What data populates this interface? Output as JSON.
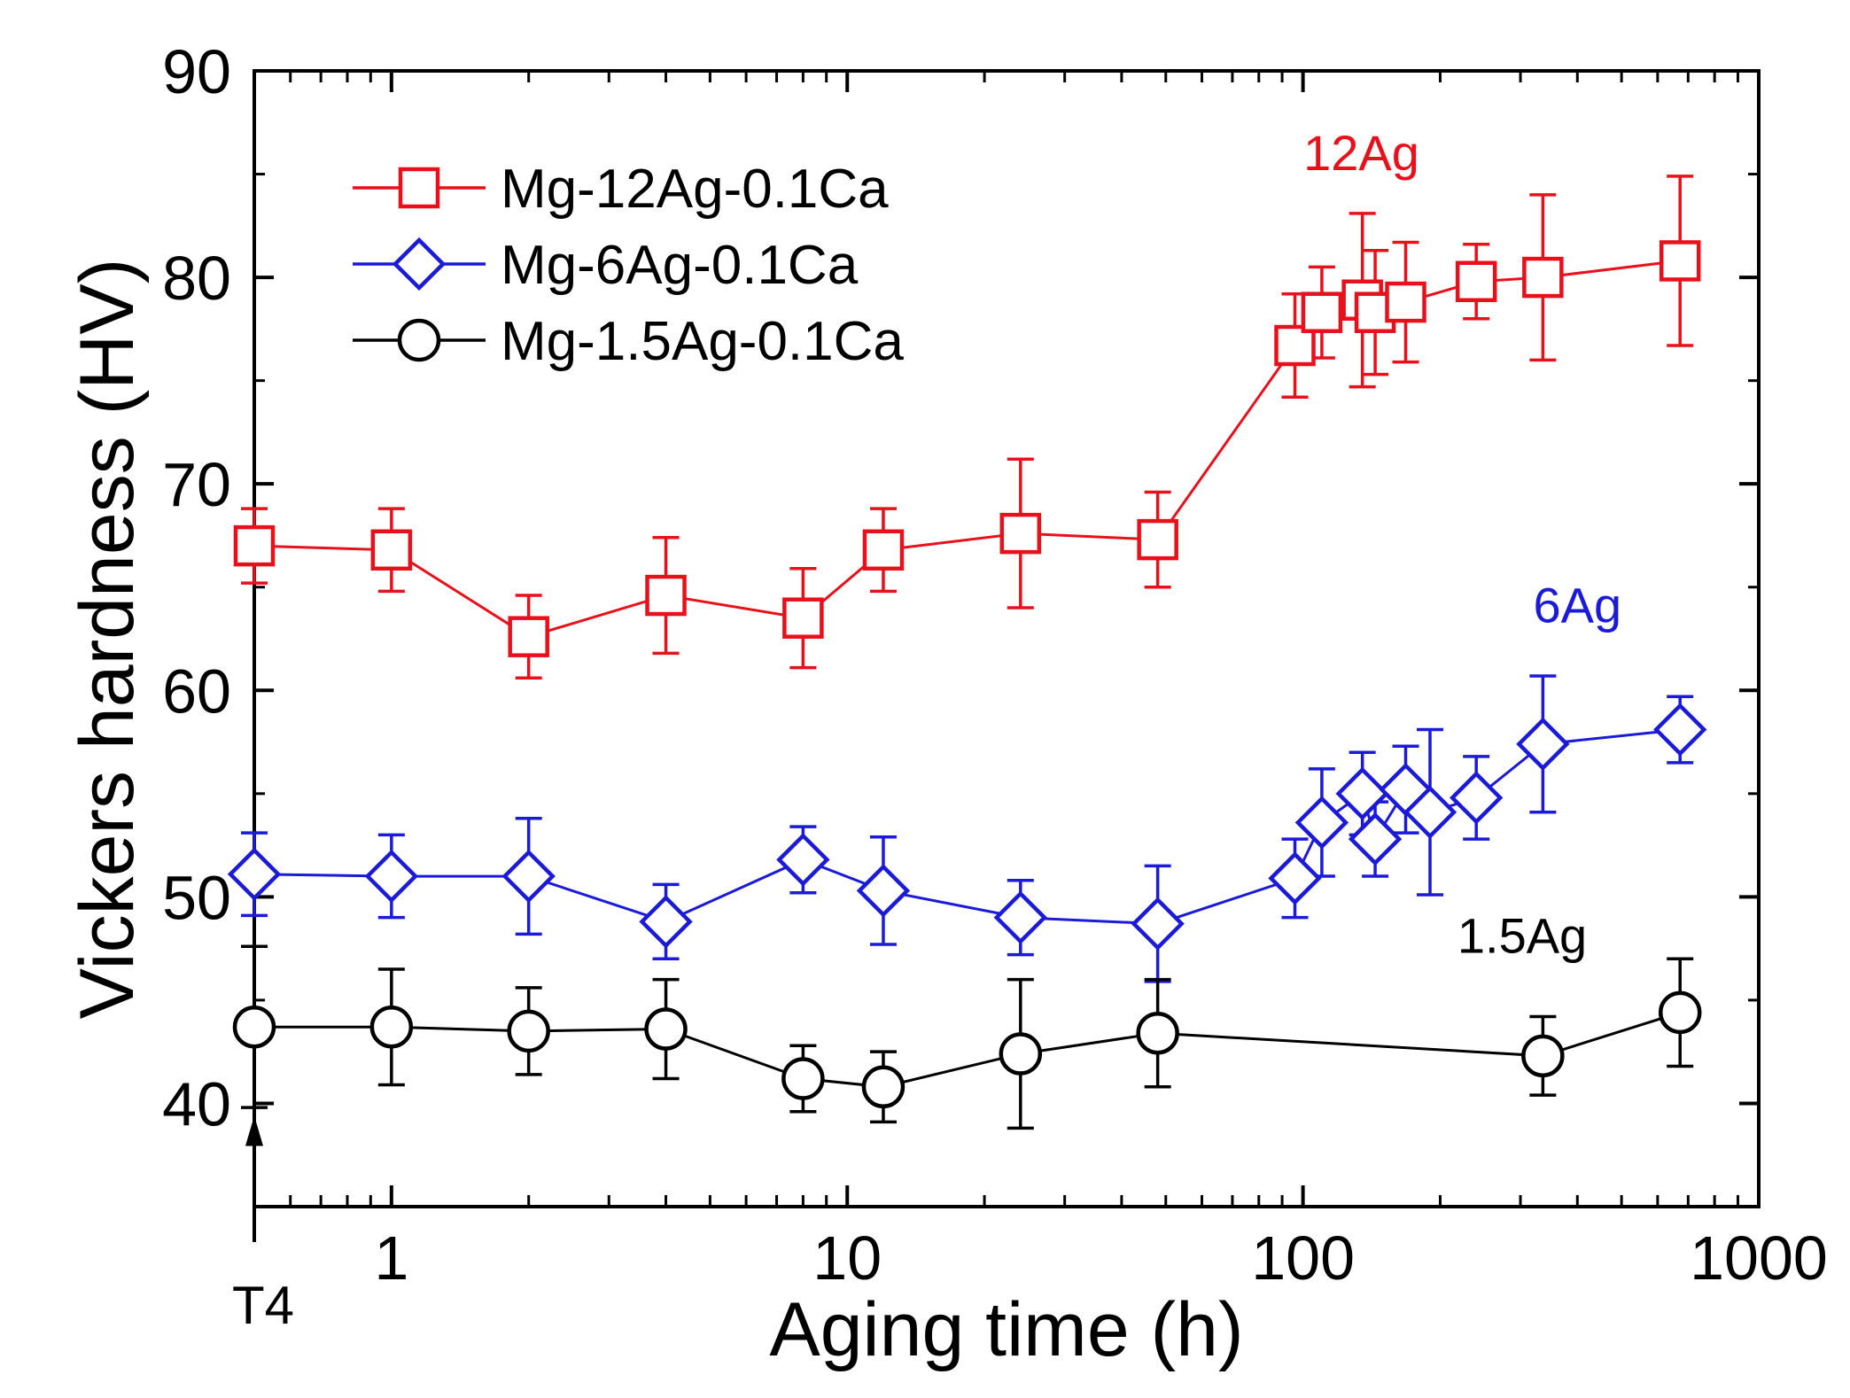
{
  "chart_data": {
    "type": "scatter",
    "xscale": "log",
    "xlim": [
      0.5,
      1000
    ],
    "ylim": [
      35,
      90
    ],
    "xlabel": "Aging time (h)",
    "ylabel": "Vickers hardness (HV)",
    "xticks": [
      {
        "value": 1,
        "label": "1"
      },
      {
        "value": 10,
        "label": "10"
      },
      {
        "value": 100,
        "label": "100"
      },
      {
        "value": 1000,
        "label": "1000"
      }
    ],
    "yticks": [
      {
        "value": 40,
        "label": "40"
      },
      {
        "value": 50,
        "label": "50"
      },
      {
        "value": 60,
        "label": "60"
      },
      {
        "value": 70,
        "label": "70"
      },
      {
        "value": 80,
        "label": "80"
      },
      {
        "value": 90,
        "label": "90"
      }
    ],
    "t4_annotation": {
      "label": "T4",
      "x": 0.5,
      "y_tip": 40
    },
    "series": [
      {
        "name": "Mg-12Ag-0.1Ca",
        "short_label": "12Ag",
        "color": "#e8101a",
        "marker": "square",
        "label_pos": {
          "x": 180,
          "y": 85.2
        },
        "points": [
          {
            "x": 0.5,
            "y": 67.0,
            "err": 1.8
          },
          {
            "x": 1,
            "y": 66.8,
            "err": 2.0
          },
          {
            "x": 2,
            "y": 62.6,
            "err": 2.0
          },
          {
            "x": 4,
            "y": 64.6,
            "err": 2.8
          },
          {
            "x": 8,
            "y": 63.5,
            "err": 2.4
          },
          {
            "x": 12,
            "y": 66.8,
            "err": 2.0
          },
          {
            "x": 24,
            "y": 67.6,
            "err": 3.6
          },
          {
            "x": 48,
            "y": 67.3,
            "err": 2.3
          },
          {
            "x": 96,
            "y": 76.7,
            "err": 2.5
          },
          {
            "x": 110,
            "y": 78.3,
            "err": 2.2
          },
          {
            "x": 135,
            "y": 78.9,
            "err": 4.2
          },
          {
            "x": 144,
            "y": 78.3,
            "err": 3.0
          },
          {
            "x": 168,
            "y": 78.8,
            "err": 2.9
          },
          {
            "x": 240,
            "y": 79.8,
            "err": 1.8
          },
          {
            "x": 336,
            "y": 80.0,
            "err": 4.0
          },
          {
            "x": 672,
            "y": 80.8,
            "err": 4.1
          }
        ]
      },
      {
        "name": "Mg-6Ag-0.1Ca",
        "short_label": "6Ag",
        "color": "#1a1ad8",
        "marker": "diamond",
        "label_pos": {
          "x": 500,
          "y": 63.3
        },
        "points": [
          {
            "x": 0.5,
            "y": 51.1,
            "err": 2.0
          },
          {
            "x": 1,
            "y": 51.0,
            "err": 2.0
          },
          {
            "x": 2,
            "y": 51.0,
            "err": 2.8
          },
          {
            "x": 4,
            "y": 48.8,
            "err": 1.8
          },
          {
            "x": 8,
            "y": 51.8,
            "err": 1.6
          },
          {
            "x": 12,
            "y": 50.3,
            "err": 2.6
          },
          {
            "x": 24,
            "y": 49.0,
            "err": 1.8
          },
          {
            "x": 48,
            "y": 48.7,
            "err": 2.8
          },
          {
            "x": 96,
            "y": 50.9,
            "err": 1.9
          },
          {
            "x": 110,
            "y": 53.6,
            "err": 2.6
          },
          {
            "x": 135,
            "y": 55.0,
            "err": 2.0
          },
          {
            "x": 144,
            "y": 52.8,
            "err": 1.8
          },
          {
            "x": 168,
            "y": 55.2,
            "err": 2.1
          },
          {
            "x": 190,
            "y": 54.1,
            "err": 4.0
          },
          {
            "x": 240,
            "y": 54.8,
            "err": 2.0
          },
          {
            "x": 336,
            "y": 57.4,
            "err": 3.3
          },
          {
            "x": 672,
            "y": 58.1,
            "err": 1.6
          }
        ]
      },
      {
        "name": "Mg-1.5Ag-0.1Ca",
        "short_label": "1.5Ag",
        "color": "#000000",
        "marker": "circle",
        "label_pos": {
          "x": 420,
          "y": 47.3
        },
        "points": [
          {
            "x": 0.5,
            "y": 43.7,
            "err": 3.9
          },
          {
            "x": 1,
            "y": 43.7,
            "err": 2.8
          },
          {
            "x": 2,
            "y": 43.5,
            "err": 2.1
          },
          {
            "x": 4,
            "y": 43.6,
            "err": 2.4
          },
          {
            "x": 8,
            "y": 41.2,
            "err": 1.6
          },
          {
            "x": 12,
            "y": 40.8,
            "err": 1.7
          },
          {
            "x": 24,
            "y": 42.4,
            "err": 3.6
          },
          {
            "x": 48,
            "y": 43.4,
            "err": 2.6
          },
          {
            "x": 336,
            "y": 42.3,
            "err": 1.9
          },
          {
            "x": 672,
            "y": 44.4,
            "err": 2.6
          }
        ]
      }
    ]
  }
}
